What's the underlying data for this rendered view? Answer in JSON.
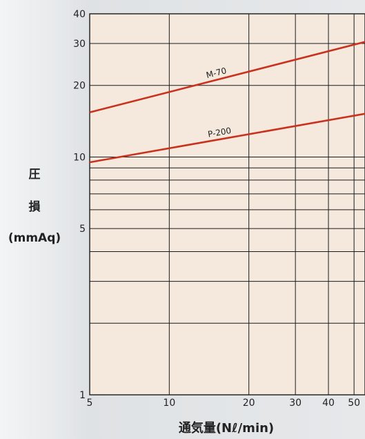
{
  "chart_data": {
    "type": "line",
    "xlabel": "通気量(Nℓ/min)",
    "ylabel_lines": [
      "圧",
      "損",
      "(mmAq)"
    ],
    "x_scale": "log",
    "y_scale": "log",
    "xlim": [
      5,
      55
    ],
    "ylim": [
      1,
      40
    ],
    "x_ticks": [
      5,
      10,
      20,
      30,
      40,
      50
    ],
    "x_tick_labels": [
      "5",
      "10",
      "20",
      "30",
      "40",
      "50"
    ],
    "y_ticks": [
      1,
      5,
      10,
      20,
      30,
      40
    ],
    "y_tick_labels": [
      "1",
      "5",
      "10",
      "20",
      "30",
      "40"
    ],
    "x_gridlines": [
      5,
      10,
      20,
      30,
      40,
      50
    ],
    "y_gridlines": [
      2,
      3,
      4,
      5,
      6,
      7,
      8,
      9,
      10,
      20,
      30,
      40
    ],
    "grid": true,
    "series": [
      {
        "name": "M-70",
        "color": "#c8321e",
        "points": [
          [
            5,
            15.4
          ],
          [
            55,
            30.5
          ]
        ]
      },
      {
        "name": "P-200",
        "color": "#c8321e",
        "points": [
          [
            5,
            9.5
          ],
          [
            55,
            15.2
          ]
        ]
      }
    ],
    "colors": {
      "plot_background": "#f4e9dc",
      "grid_minor": "#1a1a1a",
      "grid_major": "#1a1a1a",
      "series_line": "#c8321e"
    }
  }
}
